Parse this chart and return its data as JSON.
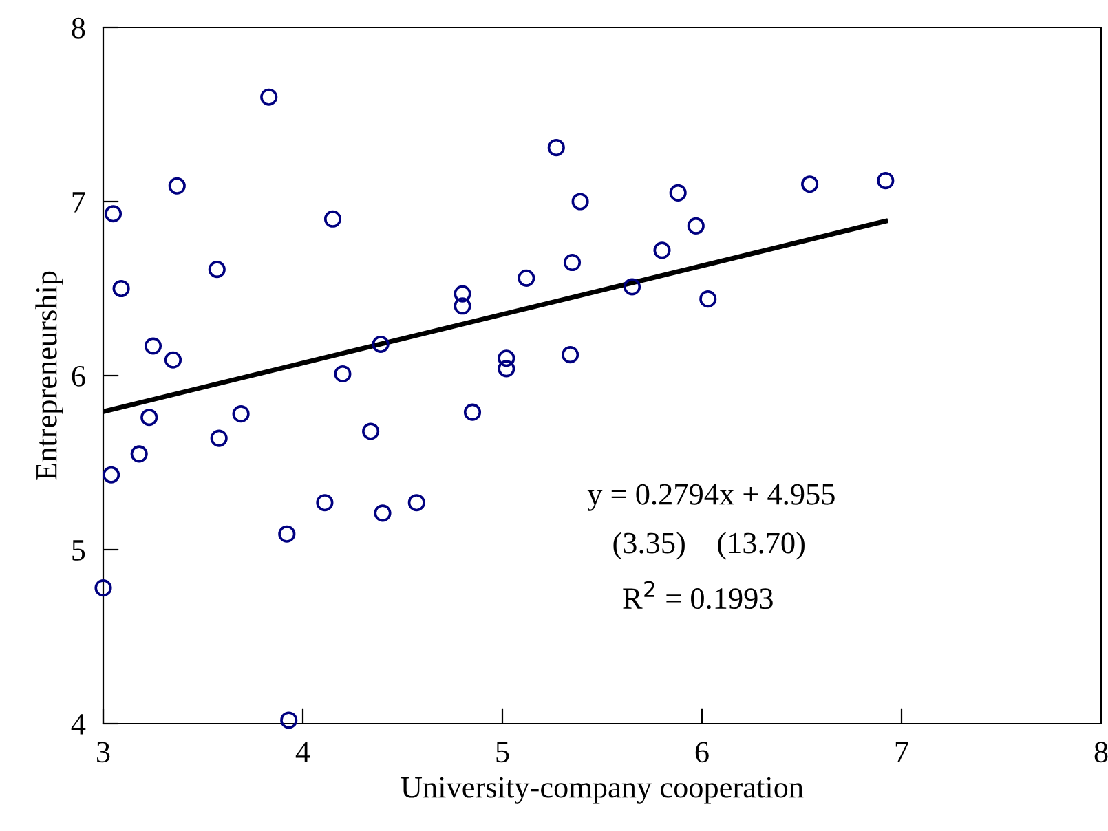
{
  "chart_data": {
    "type": "scatter",
    "xlabel": "University-company cooperation",
    "ylabel": "Entrepreneurship",
    "xlim": [
      3,
      8
    ],
    "ylim": [
      4,
      8
    ],
    "xticks": [
      3,
      4,
      5,
      6,
      7,
      8
    ],
    "yticks": [
      4,
      5,
      6,
      7,
      8
    ],
    "grid": false,
    "legend": false,
    "series": [
      {
        "marker": "circle",
        "color": "#000080",
        "x": [
          5.27,
          5.39,
          5.88,
          6.54,
          6.92,
          5.97,
          5.8,
          5.35,
          5.12,
          4.8,
          4.8,
          5.65,
          6.03,
          5.02,
          5.02,
          5.34,
          4.85,
          4.57,
          3.83,
          3.37,
          3.05,
          4.15,
          3.57,
          3.09,
          3.25,
          3.35,
          4.2,
          4.39,
          3.23,
          3.69,
          3.58,
          3.18,
          4.34,
          3.04,
          4.11,
          4.4,
          3.92,
          3.0,
          3.93
        ],
        "values": [
          7.31,
          7.0,
          7.05,
          7.1,
          7.12,
          6.86,
          6.72,
          6.65,
          6.56,
          6.47,
          6.4,
          6.51,
          6.44,
          6.1,
          6.04,
          6.12,
          5.79,
          5.27,
          7.6,
          7.09,
          6.93,
          6.9,
          6.61,
          6.5,
          6.17,
          6.09,
          6.01,
          6.18,
          5.76,
          5.78,
          5.64,
          5.55,
          5.68,
          5.43,
          5.27,
          5.21,
          5.09,
          4.78,
          4.02
        ]
      },
      {
        "type": "line",
        "marker": "none",
        "color": "#000000",
        "x": [
          3,
          6.92
        ],
        "values": [
          5.793,
          6.888
        ]
      }
    ],
    "annotations": [
      {
        "text": "y = 0.2794x + 4.955"
      },
      {
        "text": "(3.35)    (13.70)"
      },
      {
        "text": "R$^{2}$ = 0.1993"
      }
    ]
  }
}
